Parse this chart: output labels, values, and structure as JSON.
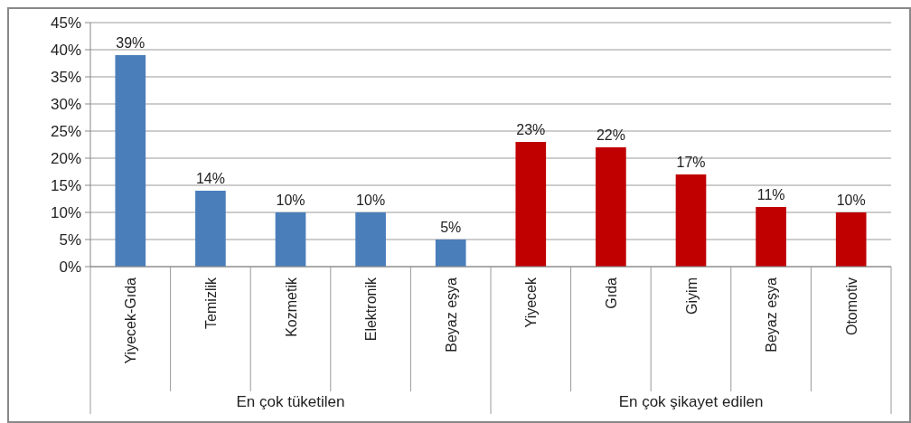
{
  "chart_data": {
    "type": "bar",
    "categories": [
      "Yiyecek-Gıda",
      "Temizlik",
      "Kozmetik",
      "Elektronik",
      "Beyaz eşya",
      "Yiyecek",
      "Gıda",
      "Giyim",
      "Beyaz eşya",
      "Otomotiv"
    ],
    "series": [
      {
        "color": "#4a7ebb",
        "values": [
          39,
          14,
          10,
          10,
          5,
          null,
          null,
          null,
          null,
          null
        ],
        "value_labels": [
          "39%",
          "14%",
          "10%",
          "10%",
          "5%",
          null,
          null,
          null,
          null,
          null
        ]
      },
      {
        "color": "#c00000",
        "values": [
          null,
          null,
          null,
          null,
          null,
          23,
          22,
          17,
          11,
          10
        ],
        "value_labels": [
          null,
          null,
          null,
          null,
          null,
          "23%",
          "22%",
          "17%",
          "11%",
          "10%"
        ]
      }
    ],
    "ylim": [
      0,
      45
    ],
    "yticks": [
      {
        "value": 0,
        "label": "0%"
      },
      {
        "value": 5,
        "label": "5%"
      },
      {
        "value": 10,
        "label": "10%"
      },
      {
        "value": 15,
        "label": "15%"
      },
      {
        "value": 20,
        "label": "20%"
      },
      {
        "value": 25,
        "label": "25%"
      },
      {
        "value": 30,
        "label": "30%"
      },
      {
        "value": 35,
        "label": "35%"
      },
      {
        "value": 40,
        "label": "40%"
      },
      {
        "value": 45,
        "label": "45%"
      }
    ],
    "grid": "y",
    "annotations": [
      "En çok tüketilen",
      "En çok şikayet edilen"
    ]
  }
}
